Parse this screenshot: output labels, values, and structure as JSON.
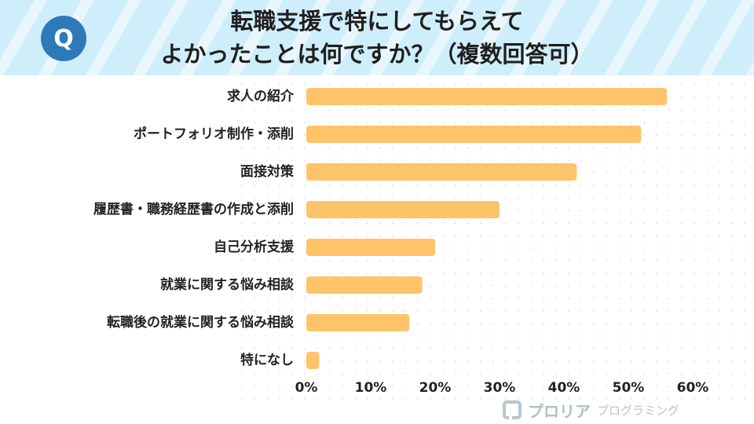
{
  "header": {
    "badge": "Q",
    "title_line1": "転職支援で特にしてもらえて",
    "title_line2": "よかったことは何ですか？（複数回答可）"
  },
  "colors": {
    "bar": "#ffc36a",
    "header_bg": "#cfeefb",
    "badge": "#2e7ab8"
  },
  "chart_data": {
    "type": "bar",
    "orientation": "horizontal",
    "title": "転職支援で特にしてもらえてよかったことは何ですか？（複数回答可）",
    "categories": [
      "求人の紹介",
      "ポートフォリオ制作・添削",
      "面接対策",
      "履歴書・職務経歴書の作成と添削",
      "自己分析支援",
      "就業に関する悩み相談",
      "転職後の就業に関する悩み相談",
      "特になし"
    ],
    "values": [
      56,
      52,
      42,
      30,
      20,
      18,
      16,
      2
    ],
    "unit": "%",
    "xlim": [
      0,
      60
    ],
    "xticks": [
      "0%",
      "10%",
      "20%",
      "30%",
      "40%",
      "50%",
      "60%"
    ],
    "grid": false,
    "legend": "none"
  },
  "logo": {
    "name": "プロリア",
    "sub": "プログラミング"
  }
}
